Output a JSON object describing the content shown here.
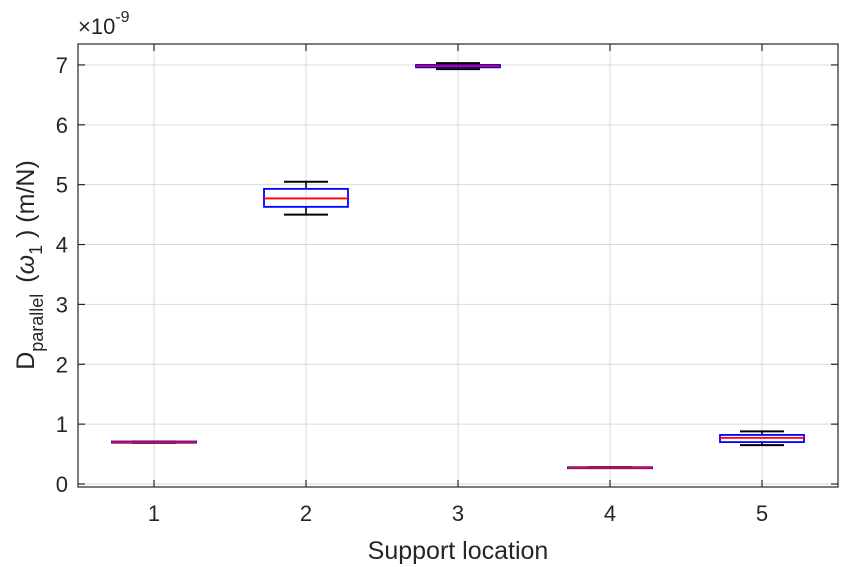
{
  "chart_data": {
    "type": "boxplot",
    "categories": [
      "1",
      "2",
      "3",
      "4",
      "5"
    ],
    "xlabel": "Support location",
    "ylabel_main": "D",
    "ylabel_subscript": "parallel",
    "ylabel_omega": "ω",
    "ylabel_omega_subscript": "1",
    "ylabel_unit": "(m/N)",
    "exponent_label": {
      "base": "×10",
      "power": "-9"
    },
    "y_scale": 1e-09,
    "ylim": [
      -0.05,
      7.35
    ],
    "yticks": [
      0,
      1,
      2,
      3,
      4,
      5,
      6,
      7
    ],
    "grid": true,
    "colors": {
      "box": "#0000ff",
      "median": "#ff0000",
      "whisker": "#000000",
      "grid": "#d9d9d9",
      "axis": "#262626"
    },
    "boxes": [
      {
        "category": "1",
        "whisker_low": 0.69,
        "q1": 0.69,
        "median": 0.7,
        "q3": 0.71,
        "whisker_high": 0.71
      },
      {
        "category": "2",
        "whisker_low": 4.5,
        "q1": 4.63,
        "median": 4.77,
        "q3": 4.93,
        "whisker_high": 5.05
      },
      {
        "category": "3",
        "whisker_low": 6.93,
        "q1": 6.96,
        "median": 6.98,
        "q3": 7.0,
        "whisker_high": 7.03
      },
      {
        "category": "4",
        "whisker_low": 0.27,
        "q1": 0.27,
        "median": 0.27,
        "q3": 0.28,
        "whisker_high": 0.28
      },
      {
        "category": "5",
        "whisker_low": 0.65,
        "q1": 0.7,
        "median": 0.77,
        "q3": 0.82,
        "whisker_high": 0.88
      }
    ]
  }
}
